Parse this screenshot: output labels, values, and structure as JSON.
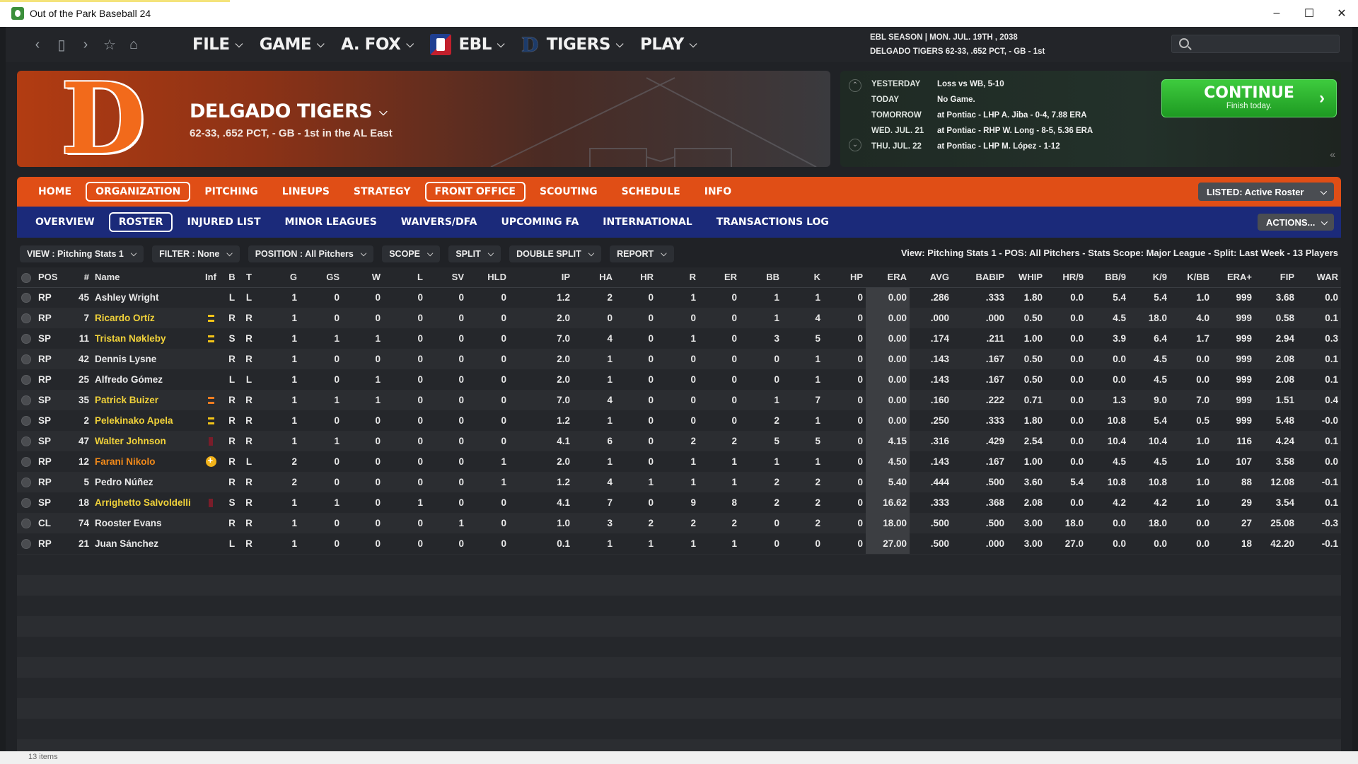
{
  "window": {
    "title": "Out of the Park Baseball 24",
    "minimize": "–",
    "maximize": "☐",
    "close": "✕"
  },
  "topnav": {
    "menus": [
      {
        "label": "FILE"
      },
      {
        "label": "GAME"
      },
      {
        "label": "A. FOX"
      },
      {
        "label": "EBL"
      },
      {
        "label": "TIGERS"
      },
      {
        "label": "PLAY"
      }
    ],
    "season_line1": "EBL SEASON  |  MON. JUL. 19TH , 2038",
    "season_line2": "DELGADO TIGERS   62-33, .652 PCT, - GB - 1st",
    "search_placeholder": ""
  },
  "banner": {
    "logo_letter": "D",
    "team_name": "DELGADO TIGERS",
    "record": "62-33, .652 PCT, - GB - 1st in the AL East"
  },
  "schedule": {
    "rows": [
      {
        "k": "YESTERDAY",
        "v": "Loss vs WB, 5-10"
      },
      {
        "k": "TODAY",
        "v": "No Game."
      },
      {
        "k": "TOMORROW",
        "v": "at Pontiac - LHP A. Jiba - 0-4, 7.88 ERA"
      },
      {
        "k": "WED. JUL. 21",
        "v": "at Pontiac - RHP W. Long - 8-5, 5.36 ERA"
      },
      {
        "k": "THU. JUL. 22",
        "v": "at Pontiac - LHP M. López - 1-12"
      }
    ],
    "continue_label": "CONTINUE",
    "continue_sub": "Finish today."
  },
  "tabs": [
    "HOME",
    "ORGANIZATION",
    "PITCHING",
    "LINEUPS",
    "STRATEGY",
    "FRONT OFFICE",
    "SCOUTING",
    "SCHEDULE",
    "INFO"
  ],
  "listed_select": "LISTED: Active Roster",
  "subtabs": [
    "OVERVIEW",
    "ROSTER",
    "INJURED LIST",
    "MINOR LEAGUES",
    "WAIVERS/DFA",
    "UPCOMING FA",
    "INTERNATIONAL",
    "TRANSACTIONS LOG"
  ],
  "actions_label": "ACTIONS...",
  "filters": [
    "VIEW : Pitching Stats 1",
    "FILTER : None",
    "POSITION : All Pitchers",
    "SCOPE",
    "SPLIT",
    "DOUBLE SPLIT",
    "REPORT"
  ],
  "view_summary": "View: Pitching Stats 1 - POS: All Pitchers - Stats Scope: Major League - Split: Last Week - 13 Players",
  "table": {
    "columns": [
      "",
      "POS",
      "#",
      "Name",
      "Inf",
      "B",
      "T",
      "G",
      "GS",
      "W",
      "L",
      "SV",
      "HLD",
      "IP",
      "HA",
      "HR",
      "R",
      "ER",
      "BB",
      "K",
      "HP",
      "ERA",
      "AVG",
      "BABIP",
      "WHIP",
      "HR/9",
      "BB/9",
      "K/9",
      "K/BB",
      "ERA+",
      "FIP",
      "WAR"
    ],
    "rows": [
      {
        "pos": "RP",
        "num": "45",
        "name": "Ashley Wright",
        "color": "",
        "inf": "",
        "b": "L",
        "t": "L",
        "stats": [
          "1",
          "0",
          "0",
          "0",
          "0",
          "0",
          "1.2",
          "2",
          "0",
          "1",
          "0",
          "1",
          "1",
          "0",
          "0.00",
          ".286",
          ".333",
          "1.80",
          "0.0",
          "5.4",
          "5.4",
          "1.0",
          "999",
          "3.68",
          "0.0"
        ]
      },
      {
        "pos": "RP",
        "num": "7",
        "name": "Ricardo Ortíz",
        "color": "yellow",
        "inf": "yellow",
        "b": "R",
        "t": "R",
        "stats": [
          "1",
          "0",
          "0",
          "0",
          "0",
          "0",
          "2.0",
          "0",
          "0",
          "0",
          "0",
          "1",
          "4",
          "0",
          "0.00",
          ".000",
          ".000",
          "0.50",
          "0.0",
          "4.5",
          "18.0",
          "4.0",
          "999",
          "0.58",
          "0.1"
        ]
      },
      {
        "pos": "SP",
        "num": "11",
        "name": "Tristan Nøkleby",
        "color": "yellow",
        "inf": "yellow",
        "b": "S",
        "t": "R",
        "stats": [
          "1",
          "1",
          "1",
          "0",
          "0",
          "0",
          "7.0",
          "4",
          "0",
          "1",
          "0",
          "3",
          "5",
          "0",
          "0.00",
          ".174",
          ".211",
          "1.00",
          "0.0",
          "3.9",
          "6.4",
          "1.7",
          "999",
          "2.94",
          "0.3"
        ]
      },
      {
        "pos": "RP",
        "num": "42",
        "name": "Dennis Lysne",
        "color": "",
        "inf": "",
        "b": "R",
        "t": "R",
        "stats": [
          "1",
          "0",
          "0",
          "0",
          "0",
          "0",
          "2.0",
          "1",
          "0",
          "0",
          "0",
          "0",
          "1",
          "0",
          "0.00",
          ".143",
          ".167",
          "0.50",
          "0.0",
          "0.0",
          "4.5",
          "0.0",
          "999",
          "2.08",
          "0.1"
        ]
      },
      {
        "pos": "RP",
        "num": "25",
        "name": "Alfredo Gómez",
        "color": "",
        "inf": "",
        "b": "L",
        "t": "L",
        "stats": [
          "1",
          "0",
          "1",
          "0",
          "0",
          "0",
          "2.0",
          "1",
          "0",
          "0",
          "0",
          "0",
          "1",
          "0",
          "0.00",
          ".143",
          ".167",
          "0.50",
          "0.0",
          "0.0",
          "4.5",
          "0.0",
          "999",
          "2.08",
          "0.1"
        ]
      },
      {
        "pos": "SP",
        "num": "35",
        "name": "Patrick Buizer",
        "color": "yellow",
        "inf": "orange",
        "b": "R",
        "t": "R",
        "stats": [
          "1",
          "1",
          "1",
          "0",
          "0",
          "0",
          "7.0",
          "4",
          "0",
          "0",
          "0",
          "1",
          "7",
          "0",
          "0.00",
          ".160",
          ".222",
          "0.71",
          "0.0",
          "1.3",
          "9.0",
          "7.0",
          "999",
          "1.51",
          "0.4"
        ]
      },
      {
        "pos": "SP",
        "num": "2",
        "name": "Pelekinako Apela",
        "color": "yellow",
        "inf": "yellow",
        "b": "R",
        "t": "R",
        "stats": [
          "1",
          "0",
          "0",
          "0",
          "0",
          "0",
          "1.2",
          "1",
          "0",
          "0",
          "0",
          "2",
          "1",
          "0",
          "0.00",
          ".250",
          ".333",
          "1.80",
          "0.0",
          "10.8",
          "5.4",
          "0.5",
          "999",
          "5.48",
          "-0.0"
        ]
      },
      {
        "pos": "SP",
        "num": "47",
        "name": "Walter Johnson",
        "color": "yellow",
        "inf": "red",
        "b": "R",
        "t": "R",
        "stats": [
          "1",
          "1",
          "0",
          "0",
          "0",
          "0",
          "4.1",
          "6",
          "0",
          "2",
          "2",
          "5",
          "5",
          "0",
          "4.15",
          ".316",
          ".429",
          "2.54",
          "0.0",
          "10.4",
          "10.4",
          "1.0",
          "116",
          "4.24",
          "0.1"
        ]
      },
      {
        "pos": "RP",
        "num": "12",
        "name": "Farani Nikolo",
        "color": "orange",
        "inf": "dot",
        "b": "R",
        "t": "L",
        "stats": [
          "2",
          "0",
          "0",
          "0",
          "0",
          "1",
          "2.0",
          "1",
          "0",
          "1",
          "1",
          "1",
          "1",
          "0",
          "4.50",
          ".143",
          ".167",
          "1.00",
          "0.0",
          "4.5",
          "4.5",
          "1.0",
          "107",
          "3.58",
          "0.0"
        ]
      },
      {
        "pos": "RP",
        "num": "5",
        "name": "Pedro Núñez",
        "color": "",
        "inf": "",
        "b": "R",
        "t": "R",
        "stats": [
          "2",
          "0",
          "0",
          "0",
          "0",
          "1",
          "1.2",
          "4",
          "1",
          "1",
          "1",
          "2",
          "2",
          "0",
          "5.40",
          ".444",
          ".500",
          "3.60",
          "5.4",
          "10.8",
          "10.8",
          "1.0",
          "88",
          "12.08",
          "-0.1"
        ]
      },
      {
        "pos": "SP",
        "num": "18",
        "name": "Arrighetto Salvoldelli",
        "color": "yellow",
        "inf": "red",
        "b": "S",
        "t": "R",
        "stats": [
          "1",
          "1",
          "0",
          "1",
          "0",
          "0",
          "4.1",
          "7",
          "0",
          "9",
          "8",
          "2",
          "2",
          "0",
          "16.62",
          ".333",
          ".368",
          "2.08",
          "0.0",
          "4.2",
          "4.2",
          "1.0",
          "29",
          "3.54",
          "0.1"
        ]
      },
      {
        "pos": "CL",
        "num": "74",
        "name": "Rooster Evans",
        "color": "",
        "inf": "",
        "b": "R",
        "t": "R",
        "stats": [
          "1",
          "0",
          "0",
          "0",
          "1",
          "0",
          "1.0",
          "3",
          "2",
          "2",
          "2",
          "0",
          "2",
          "0",
          "18.00",
          ".500",
          ".500",
          "3.00",
          "18.0",
          "0.0",
          "18.0",
          "0.0",
          "27",
          "25.08",
          "-0.3"
        ]
      },
      {
        "pos": "RP",
        "num": "21",
        "name": "Juan Sánchez",
        "color": "",
        "inf": "",
        "b": "L",
        "t": "R",
        "stats": [
          "1",
          "0",
          "0",
          "0",
          "0",
          "0",
          "0.1",
          "1",
          "1",
          "1",
          "1",
          "0",
          "0",
          "0",
          "27.00",
          ".500",
          ".000",
          "3.00",
          "27.0",
          "0.0",
          "0.0",
          "0.0",
          "18",
          "42.20",
          "-0.1"
        ]
      }
    ]
  },
  "status_text": "13 items"
}
